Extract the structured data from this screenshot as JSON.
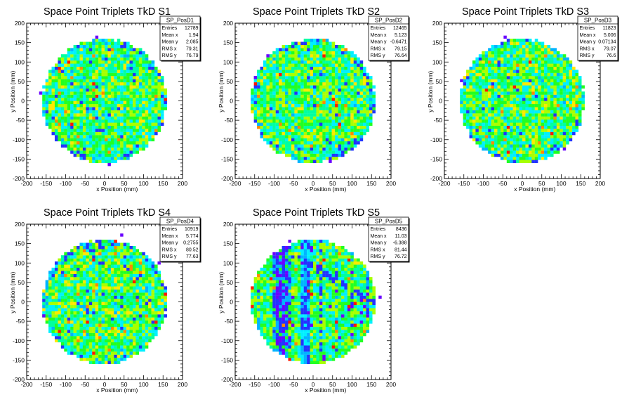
{
  "chart_data": [
    {
      "type": "heatmap",
      "title": "Space Point Triplets TkD S1",
      "xlabel": "x Position (mm)",
      "ylabel": "y Position (mm)",
      "xlim": [
        -200,
        200
      ],
      "ylim": [
        -200,
        200
      ],
      "xticks": [
        "-200",
        "-150",
        "-100",
        "-50",
        "0",
        "50",
        "100",
        "150",
        "200"
      ],
      "yticks": [
        "-200",
        "-150",
        "-100",
        "-50",
        "0",
        "50",
        "100",
        "150",
        "200"
      ],
      "stats": {
        "name": "SP_PosD1",
        "rows": [
          {
            "label": "Entries",
            "value": "12789"
          },
          {
            "label": "Mean x",
            "value": "1.94"
          },
          {
            "label": "Mean y",
            "value": "2.085"
          },
          {
            "label": "RMS x",
            "value": "79.31"
          },
          {
            "label": "RMS y",
            "value": "76.79"
          }
        ]
      },
      "entries": 12789,
      "mean_x": 1.94,
      "mean_y": 2.085,
      "rms_x": 79.31,
      "rms_y": 76.79,
      "radius": 160,
      "bin_width": 8,
      "pattern": "uniform"
    },
    {
      "type": "heatmap",
      "title": "Space Point Triplets TkD S2",
      "xlabel": "x Position (mm)",
      "ylabel": "y Position (mm)",
      "xlim": [
        -200,
        200
      ],
      "ylim": [
        -200,
        200
      ],
      "xticks": [
        "-200",
        "-150",
        "-100",
        "-50",
        "0",
        "50",
        "100",
        "150",
        "200"
      ],
      "yticks": [
        "-200",
        "-150",
        "-100",
        "-50",
        "0",
        "50",
        "100",
        "150",
        "200"
      ],
      "stats": {
        "name": "SP_PosD2",
        "rows": [
          {
            "label": "Entries",
            "value": "12465"
          },
          {
            "label": "Mean x",
            "value": "5.123"
          },
          {
            "label": "Mean y",
            "value": "-0.6471"
          },
          {
            "label": "RMS x",
            "value": "79.15"
          },
          {
            "label": "RMS y",
            "value": "76.64"
          }
        ]
      },
      "entries": 12465,
      "mean_x": 5.123,
      "mean_y": -0.6471,
      "rms_x": 79.15,
      "rms_y": 76.64,
      "radius": 160,
      "bin_width": 8,
      "pattern": "uniform"
    },
    {
      "type": "heatmap",
      "title": "Space Point Triplets TkD S3",
      "xlabel": "x Position (mm)",
      "ylabel": "y Position (mm)",
      "xlim": [
        -200,
        200
      ],
      "ylim": [
        -200,
        200
      ],
      "xticks": [
        "-200",
        "-150",
        "-100",
        "-50",
        "0",
        "50",
        "100",
        "150",
        "200"
      ],
      "yticks": [
        "-200",
        "-150",
        "-100",
        "-50",
        "0",
        "50",
        "100",
        "150",
        "200"
      ],
      "stats": {
        "name": "SP_PosD3",
        "rows": [
          {
            "label": "Entries",
            "value": "11823"
          },
          {
            "label": "Mean x",
            "value": "5.006"
          },
          {
            "label": "Mean y",
            "value": "0.07134"
          },
          {
            "label": "RMS x",
            "value": "79.07"
          },
          {
            "label": "RMS y",
            "value": "76.6"
          }
        ]
      },
      "entries": 11823,
      "mean_x": 5.006,
      "mean_y": 0.07134,
      "rms_x": 79.07,
      "rms_y": 76.6,
      "radius": 160,
      "bin_width": 8,
      "pattern": "uniform"
    },
    {
      "type": "heatmap",
      "title": "Space Point Triplets TkD S4",
      "xlabel": "x Position (mm)",
      "ylabel": "y Position (mm)",
      "xlim": [
        -200,
        200
      ],
      "ylim": [
        -200,
        200
      ],
      "xticks": [
        "-200",
        "-150",
        "-100",
        "-50",
        "0",
        "50",
        "100",
        "150",
        "200"
      ],
      "yticks": [
        "-200",
        "-150",
        "-100",
        "-50",
        "0",
        "50",
        "100",
        "150",
        "200"
      ],
      "stats": {
        "name": "SP_PosD4",
        "rows": [
          {
            "label": "Entries",
            "value": "10919"
          },
          {
            "label": "Mean x",
            "value": "5.774"
          },
          {
            "label": "Mean y",
            "value": "0.2755"
          },
          {
            "label": "RMS x",
            "value": "80.52"
          },
          {
            "label": "RMS y",
            "value": "77.63"
          }
        ]
      },
      "entries": 10919,
      "mean_x": 5.774,
      "mean_y": 0.2755,
      "rms_x": 80.52,
      "rms_y": 77.63,
      "radius": 160,
      "bin_width": 8,
      "pattern": "uniform"
    },
    {
      "type": "heatmap",
      "title": "Space Point Triplets TkD S5",
      "xlabel": "x Position (mm)",
      "ylabel": "y Position (mm)",
      "xlim": [
        -200,
        200
      ],
      "ylim": [
        -200,
        200
      ],
      "xticks": [
        "-200",
        "-150",
        "-100",
        "-50",
        "0",
        "50",
        "100",
        "150",
        "200"
      ],
      "yticks": [
        "-200",
        "-150",
        "-100",
        "-50",
        "0",
        "50",
        "100",
        "150",
        "200"
      ],
      "stats": {
        "name": "SP_PosD5",
        "rows": [
          {
            "label": "Entries",
            "value": "8436"
          },
          {
            "label": "Mean x",
            "value": "11.03"
          },
          {
            "label": "Mean y",
            "value": "-6.388"
          },
          {
            "label": "RMS x",
            "value": "81.44"
          },
          {
            "label": "RMS y",
            "value": "76.72"
          }
        ]
      },
      "entries": 8436,
      "mean_x": 11.03,
      "mean_y": -6.388,
      "rms_x": 81.44,
      "rms_y": 76.72,
      "radius": 160,
      "bin_width": 8,
      "pattern": "dead-channels"
    }
  ]
}
